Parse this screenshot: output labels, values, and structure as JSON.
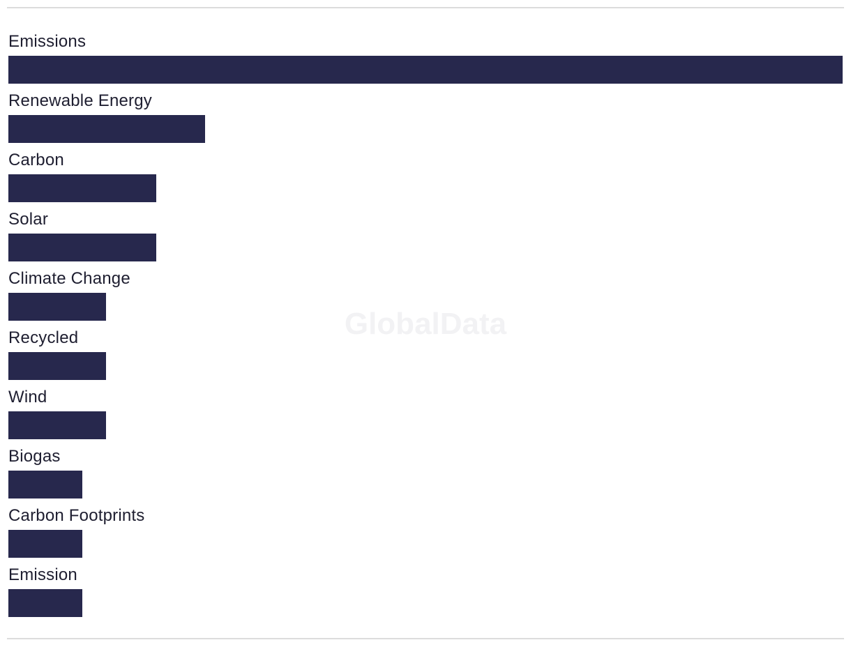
{
  "watermark": "GlobalData",
  "colors": {
    "bar": "#27284d",
    "rule": "#dcdcdc",
    "label": "#1e1e30"
  },
  "chart_data": {
    "type": "bar",
    "orientation": "horizontal",
    "categories": [
      "Emissions",
      "Renewable Energy",
      "Carbon",
      "Solar",
      "Climate Change",
      "Recycled",
      "Wind",
      "Biogas",
      "Carbon Footprints",
      "Emission"
    ],
    "values": [
      35,
      8.25,
      6.2,
      6.2,
      4.1,
      4.1,
      4.1,
      3.1,
      3.1,
      3.1
    ],
    "xlim": [
      0,
      35
    ],
    "grid": false,
    "legend": "none"
  }
}
